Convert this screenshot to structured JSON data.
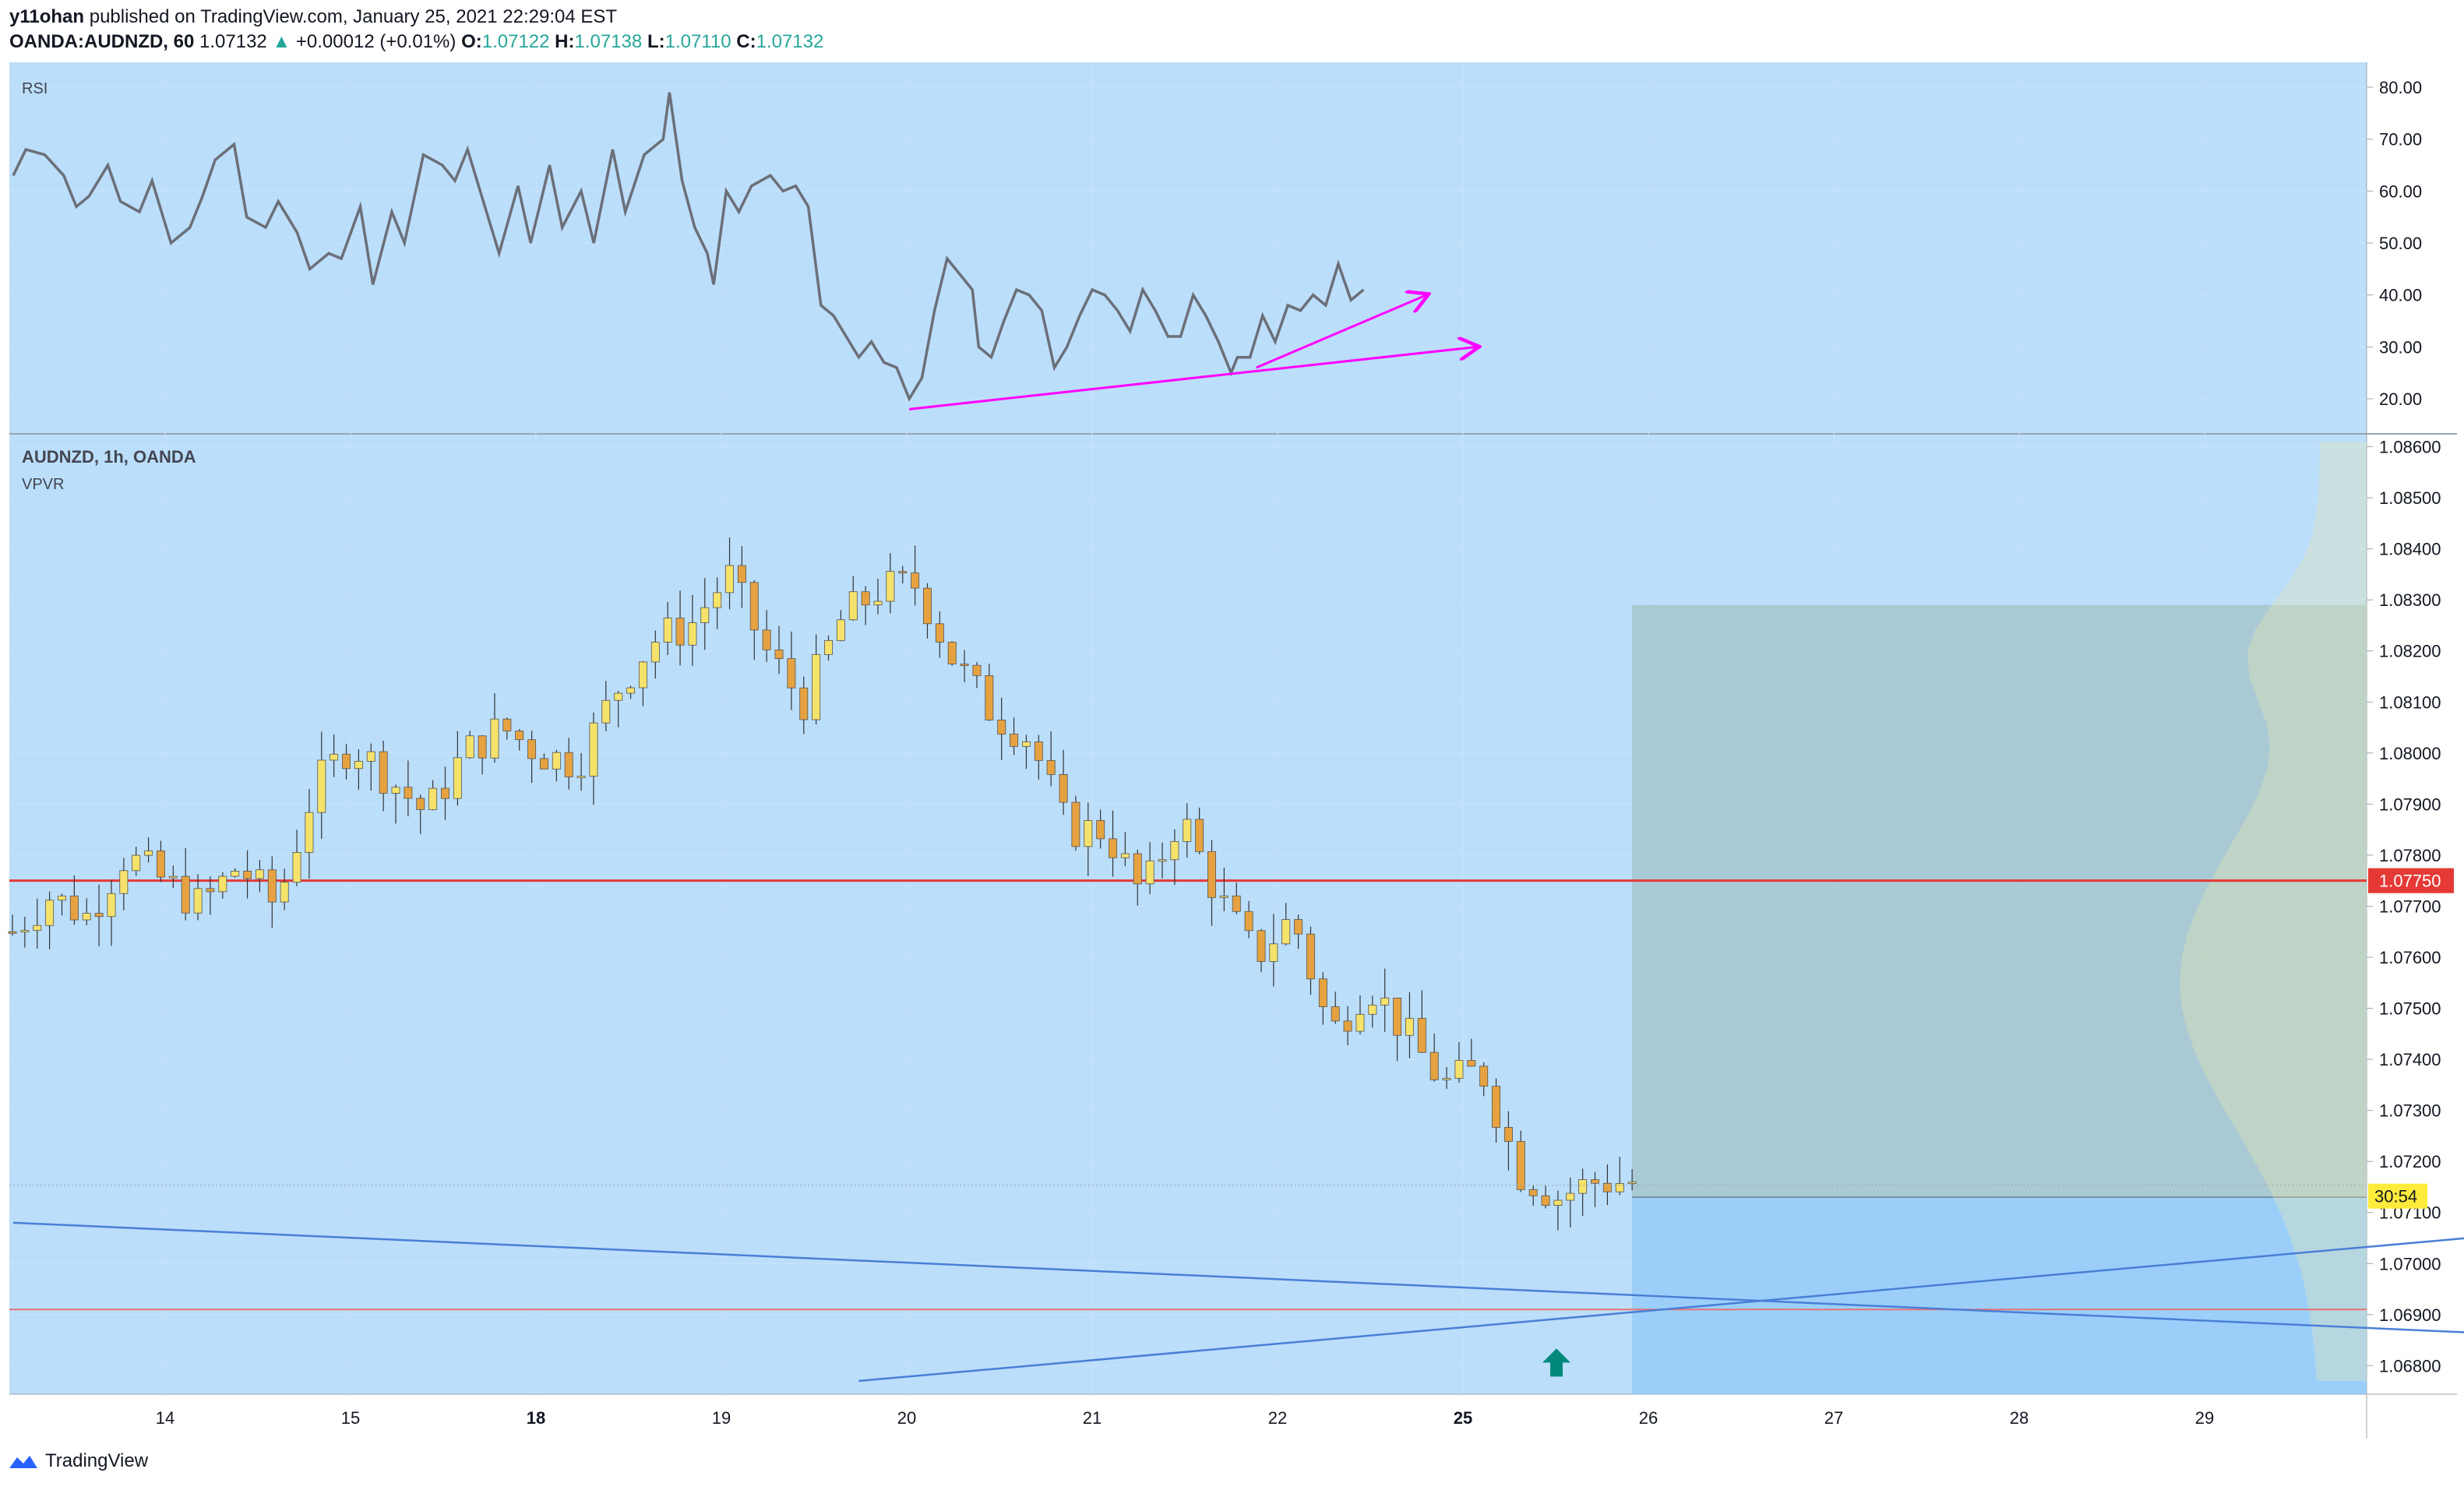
{
  "header": {
    "line1_user": "y11ohan",
    "line1_text": "published on TradingView.com, January 25, 2021 22:29:04 EST",
    "symbol": "OANDA:AUDNZD, 60",
    "price": "1.07132",
    "change": "+0.00012 (+0.01%)",
    "o_label": "O:",
    "o": "1.07122",
    "h_label": "H:",
    "h": "1.07138",
    "l_label": "L:",
    "l": "1.07110",
    "c_label": "C:",
    "c": "1.07132"
  },
  "footer": {
    "brand": "TradingView"
  },
  "chart_data": [
    {
      "type": "line",
      "indicator": "RSI",
      "label": "RSI",
      "y_ticks": [
        "80.00",
        "70.00",
        "60.00",
        "50.00",
        "40.00",
        "30.00",
        "20.00"
      ],
      "ylim": [
        20,
        80
      ],
      "points": [
        [
          0,
          63
        ],
        [
          0.2,
          68
        ],
        [
          0.5,
          67
        ],
        [
          0.8,
          63
        ],
        [
          1.0,
          57
        ],
        [
          1.2,
          59
        ],
        [
          1.5,
          65
        ],
        [
          1.7,
          58
        ],
        [
          2.0,
          56
        ],
        [
          2.2,
          62
        ],
        [
          2.5,
          50
        ],
        [
          2.8,
          53
        ],
        [
          3.0,
          59
        ],
        [
          3.2,
          66
        ],
        [
          3.5,
          69
        ],
        [
          3.7,
          55
        ],
        [
          4.0,
          53
        ],
        [
          4.2,
          58
        ],
        [
          4.5,
          52
        ],
        [
          4.7,
          45
        ],
        [
          5.0,
          48
        ],
        [
          5.2,
          47
        ],
        [
          5.5,
          57
        ],
        [
          5.7,
          42
        ],
        [
          6.0,
          56
        ],
        [
          6.2,
          50
        ],
        [
          6.5,
          67
        ],
        [
          6.8,
          65
        ],
        [
          7.0,
          62
        ],
        [
          7.2,
          68
        ],
        [
          7.5,
          56
        ],
        [
          7.7,
          48
        ],
        [
          8.0,
          61
        ],
        [
          8.2,
          50
        ],
        [
          8.5,
          65
        ],
        [
          8.7,
          53
        ],
        [
          9.0,
          60
        ],
        [
          9.2,
          50
        ],
        [
          9.5,
          68
        ],
        [
          9.7,
          56
        ],
        [
          10.0,
          67
        ],
        [
          10.3,
          70
        ],
        [
          10.4,
          79
        ],
        [
          10.6,
          62
        ],
        [
          10.8,
          53
        ],
        [
          11.0,
          48
        ],
        [
          11.1,
          42
        ],
        [
          11.3,
          60
        ],
        [
          11.5,
          56
        ],
        [
          11.7,
          61
        ],
        [
          12.0,
          63
        ],
        [
          12.2,
          60
        ],
        [
          12.4,
          61
        ],
        [
          12.6,
          57
        ],
        [
          12.8,
          38
        ],
        [
          13.0,
          36
        ],
        [
          13.2,
          32
        ],
        [
          13.4,
          28
        ],
        [
          13.6,
          31
        ],
        [
          13.8,
          27
        ],
        [
          14.0,
          26
        ],
        [
          14.2,
          20
        ],
        [
          14.4,
          24
        ],
        [
          14.6,
          37
        ],
        [
          14.8,
          47
        ],
        [
          15.0,
          44
        ],
        [
          15.2,
          41
        ],
        [
          15.3,
          30
        ],
        [
          15.5,
          28
        ],
        [
          15.7,
          35
        ],
        [
          15.9,
          41
        ],
        [
          16.1,
          40
        ],
        [
          16.3,
          37
        ],
        [
          16.5,
          26
        ],
        [
          16.7,
          30
        ],
        [
          16.9,
          36
        ],
        [
          17.1,
          41
        ],
        [
          17.3,
          40
        ],
        [
          17.5,
          37
        ],
        [
          17.7,
          33
        ],
        [
          17.9,
          41
        ],
        [
          18.1,
          37
        ],
        [
          18.3,
          32
        ],
        [
          18.5,
          32
        ],
        [
          18.7,
          40
        ],
        [
          18.9,
          36
        ],
        [
          19.1,
          31
        ],
        [
          19.3,
          25
        ],
        [
          19.4,
          28
        ],
        [
          19.6,
          28
        ],
        [
          19.8,
          36
        ],
        [
          20.0,
          31
        ],
        [
          20.2,
          38
        ],
        [
          20.4,
          37
        ],
        [
          20.6,
          40
        ],
        [
          20.8,
          38
        ],
        [
          21.0,
          46
        ],
        [
          21.2,
          39
        ],
        [
          21.4,
          41
        ]
      ],
      "annotations": [
        {
          "type": "arrow",
          "color": "#ff00ff",
          "from": [
            14.2,
            18
          ],
          "to": [
            23.2,
            30
          ]
        },
        {
          "type": "arrow",
          "color": "#ff00ff",
          "from": [
            19.7,
            26
          ],
          "to": [
            22.4,
            40
          ]
        }
      ]
    },
    {
      "type": "candlestick",
      "title": "AUDNZD, 1h, OANDA",
      "indicator_label": "VPVR",
      "y_ticks": [
        "1.08600",
        "1.08500",
        "1.08400",
        "1.08300",
        "1.08200",
        "1.08100",
        "1.08000",
        "1.07900",
        "1.07800",
        "1.07700",
        "1.07600",
        "1.07500",
        "1.07400",
        "1.07300",
        "1.07200",
        "1.07100",
        "1.07000",
        "1.06900",
        "1.06800"
      ],
      "ylim": [
        1.0677,
        1.0861
      ],
      "x_ticks": [
        {
          "day": "14",
          "bold": false
        },
        {
          "day": "15",
          "bold": false
        },
        {
          "day": "18",
          "bold": true
        },
        {
          "day": "19",
          "bold": false
        },
        {
          "day": "20",
          "bold": false
        },
        {
          "day": "21",
          "bold": false
        },
        {
          "day": "22",
          "bold": false
        },
        {
          "day": "25",
          "bold": true
        },
        {
          "day": "26",
          "bold": false
        },
        {
          "day": "27",
          "bold": false
        },
        {
          "day": "28",
          "bold": false
        },
        {
          "day": "29",
          "bold": false
        }
      ],
      "anchors": [
        [
          0,
          1.0765
        ],
        [
          1,
          1.0772
        ],
        [
          2,
          1.0768
        ],
        [
          3,
          1.078
        ],
        [
          4,
          1.0775
        ],
        [
          5,
          1.077
        ],
        [
          6,
          1.0778
        ],
        [
          7,
          1.077
        ],
        [
          8,
          1.0793
        ],
        [
          9,
          1.0802
        ],
        [
          10,
          1.0795
        ],
        [
          11,
          1.0788
        ],
        [
          12,
          1.08
        ],
        [
          13,
          1.0805
        ],
        [
          14,
          1.08
        ],
        [
          15,
          1.0798
        ],
        [
          16,
          1.0812
        ],
        [
          17,
          1.0822
        ],
        [
          18,
          1.0825
        ],
        [
          19,
          1.0835
        ],
        [
          20,
          1.082
        ],
        [
          21,
          1.081
        ],
        [
          22,
          1.0826
        ],
        [
          23,
          1.0832
        ],
        [
          24,
          1.0833
        ],
        [
          25,
          1.0818
        ],
        [
          26,
          1.0808
        ],
        [
          27,
          1.0803
        ],
        [
          28,
          1.0785
        ],
        [
          29,
          1.0785
        ],
        [
          30,
          1.0772
        ],
        [
          31,
          1.0788
        ],
        [
          32,
          1.0772
        ],
        [
          33,
          1.076
        ],
        [
          34,
          1.0768
        ],
        [
          35,
          1.0745
        ],
        [
          36,
          1.0755
        ],
        [
          37,
          1.0745
        ],
        [
          38,
          1.0735
        ],
        [
          39,
          1.0738
        ],
        [
          40,
          1.0718
        ],
        [
          41,
          1.0713
        ],
        [
          42,
          1.0716
        ],
        [
          43,
          1.0716
        ]
      ],
      "last_price": "1.07132",
      "last_price_label": "30:54",
      "horizontal_lines": [
        {
          "price": 1.0775,
          "label": "1.07750",
          "color": "#e53935"
        },
        {
          "price": 1.0691,
          "color": "#e57373"
        }
      ],
      "trendlines": [
        {
          "from": [
            0,
            1.0708
          ],
          "to": [
            43.5,
            1.0685
          ]
        },
        {
          "from": [
            14,
            1.0677
          ],
          "to": [
            43.5,
            1.0708
          ]
        }
      ],
      "marker": {
        "type": "up-arrow",
        "color": "#00897b",
        "x": 34,
        "price": 1.068
      },
      "position_box": {
        "entry": 1.0713,
        "target": 1.0829,
        "stop": 1.0677
      }
    }
  ]
}
